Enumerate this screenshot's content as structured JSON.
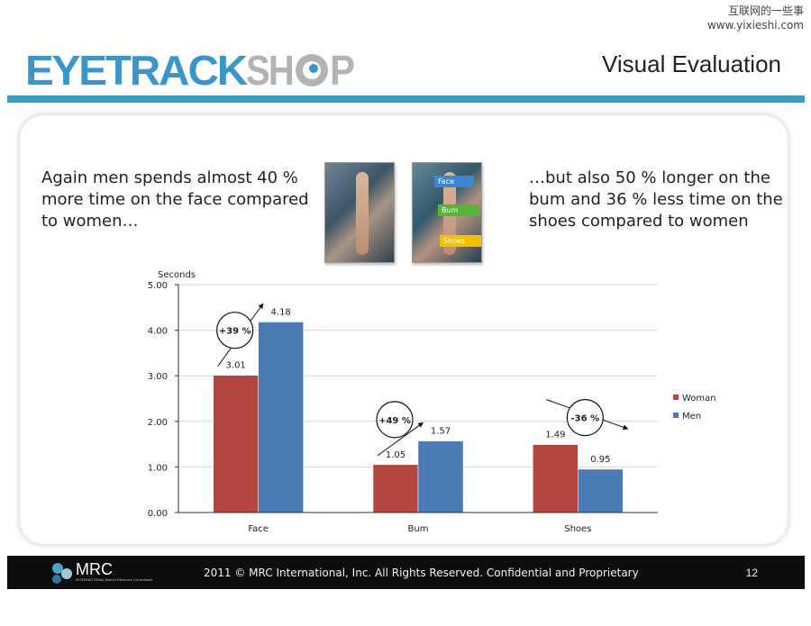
{
  "watermark": {
    "line1": "互联网的一些事",
    "line2": "www.yixieshi.com"
  },
  "logo": {
    "text_eyetrack": "EYETRACK",
    "text_sh": "SH",
    "text_p": "P",
    "color_blue": "#3a96c8",
    "color_grey": "#b3b3b3"
  },
  "slide": {
    "title": "Visual Evaluation",
    "text_left": "Again men spends almost 40 % more time on the face compared to women…",
    "text_right": "…but also 50 % longer on the bum and 36 % less time on the shoes compared to women"
  },
  "heatmap_labels": {
    "face": "Face",
    "bum": "Bum",
    "shoes": "Shoes"
  },
  "chart_data": {
    "type": "bar",
    "ylabel": "Seconds",
    "ylim": [
      0,
      5
    ],
    "yticks": [
      0,
      1,
      2,
      3,
      4,
      5
    ],
    "ytick_labels": [
      "0.00",
      "1.00",
      "2.00",
      "3.00",
      "4.00",
      "5.00"
    ],
    "categories": [
      "Face",
      "Bum",
      "Shoes"
    ],
    "series": [
      {
        "name": "Woman",
        "values": [
          3.01,
          1.05,
          1.49
        ],
        "labels": [
          "3.01",
          "1.05",
          "1.49"
        ],
        "color": "#b5463f"
      },
      {
        "name": "Men",
        "values": [
          4.18,
          1.57,
          0.95
        ],
        "labels": [
          "4.18",
          "1.57",
          "0.95"
        ],
        "color": "#4a7bb5"
      }
    ],
    "legend_position": "right",
    "annotations": [
      {
        "category": "Face",
        "label": "+39 %",
        "direction": "up"
      },
      {
        "category": "Bum",
        "label": "+49 %",
        "direction": "up"
      },
      {
        "category": "Shoes",
        "label": "-36 %",
        "direction": "down"
      }
    ],
    "grid": true
  },
  "footer": {
    "logo_text": "MRC",
    "logo_subtext": "INTERNATIONAL Market Research Consultants",
    "copyright": "2011 © MRC International, Inc. All Rights Reserved. Confidential and Proprietary",
    "page_number": "12"
  }
}
